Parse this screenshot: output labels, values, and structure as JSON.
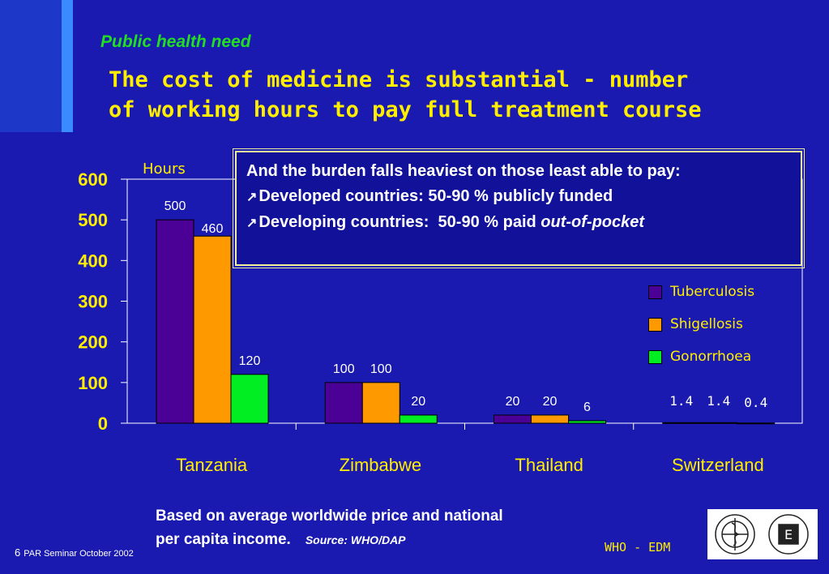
{
  "slide": {
    "subtitle": "Public health need",
    "title_line1": "The cost of medicine is substantial - number",
    "title_line2": "of working hours to pay full treatment course",
    "note_intro": "And the burden falls heaviest on those least able to pay:",
    "note_bullet1": "Developed countries: 50-90 % publicly funded",
    "note_bullet2_prefix": "Developing countries:  50-90 % paid ",
    "note_bullet2_italic": "out-of-pocket",
    "source_line1": "Based on average worldwide price and national",
    "source_line2": "per capita income.",
    "source_credit": "Source: WHO/DAP",
    "page_number": "6",
    "footer_text": "PAR Seminar October 2002",
    "org_label": "WHO - EDM"
  },
  "colors": {
    "background": "#1a1ab0",
    "tuberculosis": "#4b0096",
    "shigellosis": "#ff9900",
    "gonorrhoea": "#00ee22",
    "text_yellow": "#ffee00"
  },
  "chart_data": {
    "type": "bar",
    "ylabel": "Hours",
    "ylim": [
      0,
      600
    ],
    "yticks": [
      "0",
      "100",
      "200",
      "300",
      "400",
      "500",
      "600"
    ],
    "categories": [
      "Tanzania",
      "Zimbabwe",
      "Thailand",
      "Switzerland"
    ],
    "series": [
      {
        "name": "Tuberculosis",
        "values": [
          500,
          100,
          20,
          1.4
        ],
        "labels": [
          "500",
          "100",
          "20",
          "1.4"
        ]
      },
      {
        "name": "Shigellosis",
        "values": [
          460,
          100,
          20,
          1.4
        ],
        "labels": [
          "460",
          "100",
          "20",
          "1.4"
        ]
      },
      {
        "name": "Gonorrhoea",
        "values": [
          120,
          20,
          6,
          0.4
        ],
        "labels": [
          "120",
          "20",
          "6",
          "0.4"
        ]
      }
    ],
    "legend_position": "right"
  }
}
